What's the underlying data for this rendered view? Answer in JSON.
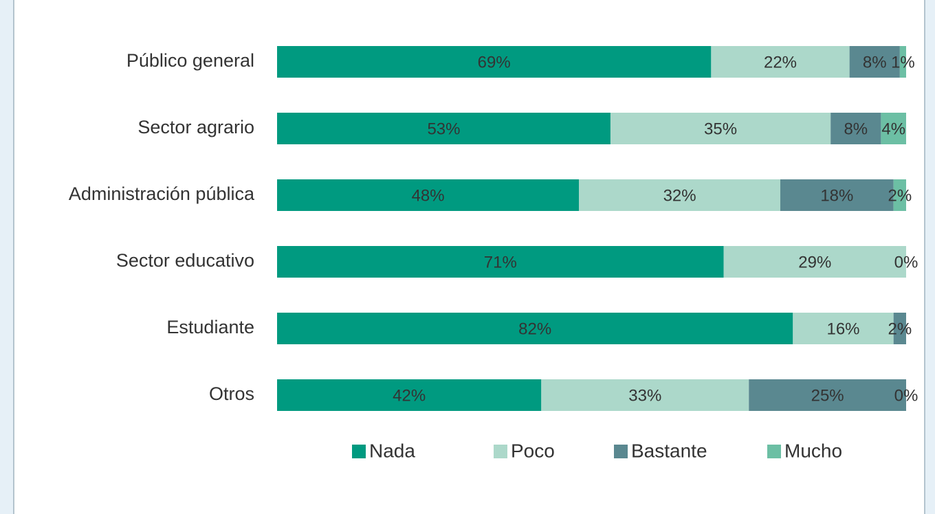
{
  "chart_data": {
    "type": "stacked_barh",
    "categories": [
      "Público general",
      "Sector agrario",
      "Administración pública",
      "Sector educativo",
      "Estudiante",
      "Otros"
    ],
    "xlim": [
      0,
      100
    ],
    "legend": "bottom",
    "series": [
      {
        "name": "Nada",
        "color": "#009a80",
        "values": [
          69,
          53,
          48,
          71,
          82,
          42
        ],
        "value_labels": [
          "69%",
          "53%",
          "48%",
          "71%",
          "82%",
          "42%"
        ]
      },
      {
        "name": "Poco",
        "color": "#acd8ca",
        "values": [
          22,
          35,
          32,
          29,
          16,
          33
        ],
        "value_labels": [
          "22%",
          "35%",
          "32%",
          "29%",
          "16%",
          "33%"
        ]
      },
      {
        "name": "Bastante",
        "color": "#5a8890",
        "values": [
          8,
          8,
          18,
          0,
          2,
          25
        ],
        "value_labels": [
          "8%",
          "8%",
          "18%",
          null,
          "2%",
          "25%"
        ]
      },
      {
        "name": "Mucho",
        "color": "#6cbfa4",
        "values": [
          1,
          4,
          2,
          0,
          0,
          0
        ],
        "value_labels": [
          "1%",
          "4%",
          "2%",
          "0%",
          null,
          "0%"
        ]
      }
    ]
  }
}
